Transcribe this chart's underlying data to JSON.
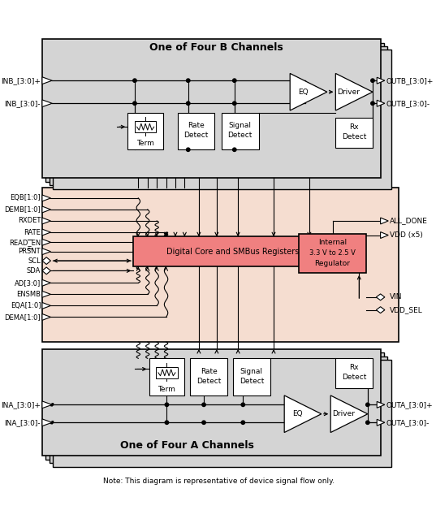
{
  "fig_width": 5.37,
  "fig_height": 6.44,
  "dpi": 100,
  "bg_color": "#ffffff",
  "note": "Note: This diagram is representative of device signal flow only.",
  "b_channel_label": "One of Four B Channels",
  "a_channel_label": "One of Four A Channels",
  "b_channel_color": "#d4d4d4",
  "a_channel_color": "#d4d4d4",
  "mid_color": "#f5ddd0",
  "dc_color": "#f08080",
  "reg_color": "#f08080"
}
